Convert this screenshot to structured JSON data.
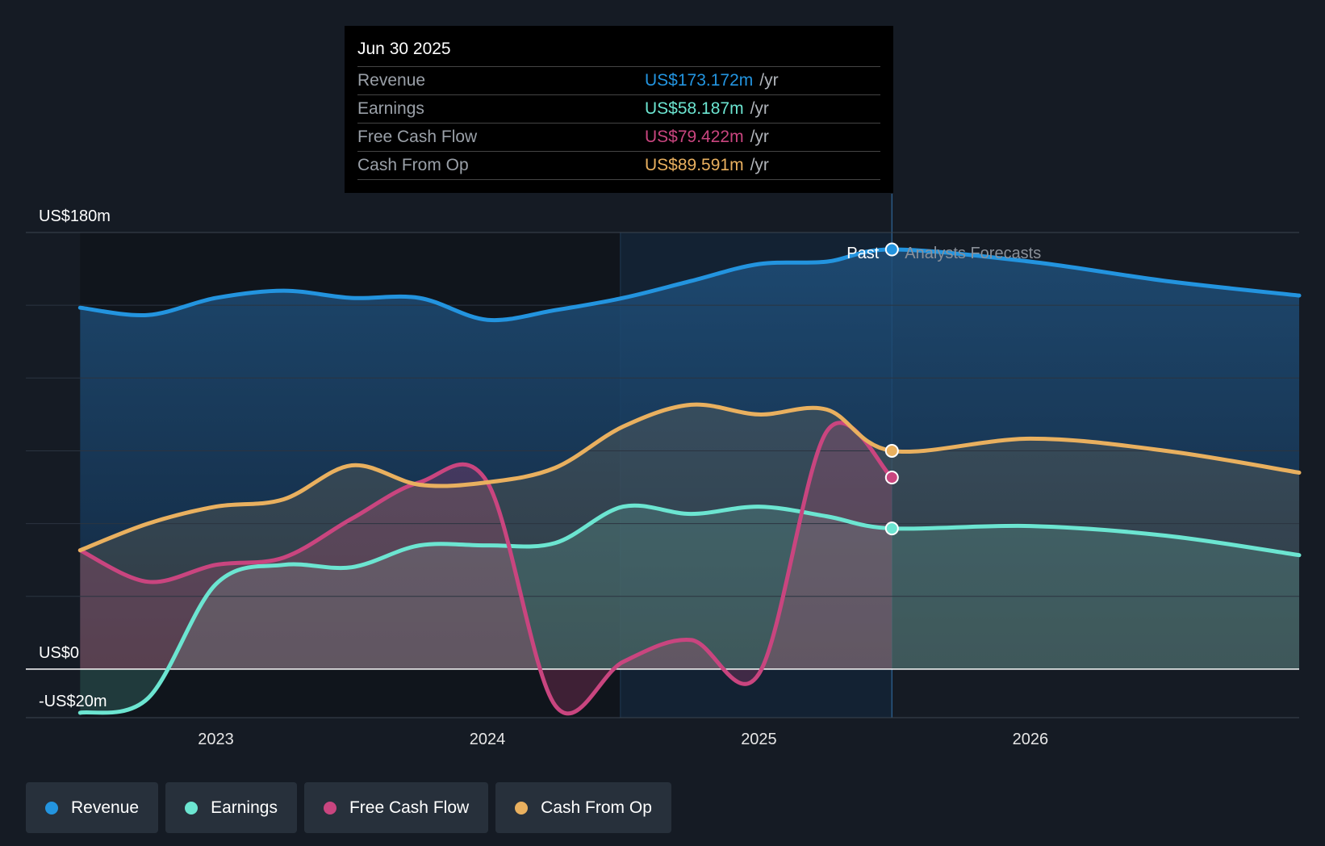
{
  "tooltip": {
    "date": "Jun 30 2025",
    "rows": [
      {
        "name": "Revenue",
        "value": "US$173.172m",
        "unit": "/yr",
        "color": "#2394df"
      },
      {
        "name": "Earnings",
        "value": "US$58.187m",
        "unit": "/yr",
        "color": "#6ce5d1"
      },
      {
        "name": "Free Cash Flow",
        "value": "US$79.422m",
        "unit": "/yr",
        "color": "#c9457f"
      },
      {
        "name": "Cash From Op",
        "value": "US$89.591m",
        "unit": "/yr",
        "color": "#e9b05f"
      }
    ]
  },
  "labels": {
    "past": "Past",
    "forecast": "Analysts Forecasts"
  },
  "legend": [
    {
      "name": "Revenue",
      "color": "#2394df"
    },
    {
      "name": "Earnings",
      "color": "#6ce5d1"
    },
    {
      "name": "Free Cash Flow",
      "color": "#c9457f"
    },
    {
      "name": "Cash From Op",
      "color": "#e9b05f"
    }
  ],
  "chart_data": {
    "type": "line",
    "y_tick_labels": [
      "US$180m",
      "US$0",
      "-US$20m"
    ],
    "ylim": [
      -20,
      180
    ],
    "x_tick_labels": [
      "2023",
      "2024",
      "2025",
      "2026"
    ],
    "x_ticks": [
      2023.0,
      2024.0,
      2025.0,
      2026.0
    ],
    "xlim": [
      2022.3,
      2026.99
    ],
    "past_end": 2025.49,
    "highlight_start": 2024.49,
    "grid": true,
    "series": [
      {
        "name": "Revenue",
        "color": "#2394df",
        "x": [
          2022.5,
          2022.75,
          2023.0,
          2023.25,
          2023.5,
          2023.75,
          2024.0,
          2024.25,
          2024.5,
          2024.75,
          2025.0,
          2025.25,
          2025.49,
          2026.0,
          2026.5,
          2026.99
        ],
        "y": [
          149,
          146,
          153,
          156,
          153,
          153,
          144,
          148,
          153,
          160,
          167,
          168,
          173,
          168,
          160,
          154
        ]
      },
      {
        "name": "Earnings",
        "color": "#6ce5d1",
        "x": [
          2022.5,
          2022.75,
          2023.0,
          2023.25,
          2023.5,
          2023.75,
          2024.0,
          2024.25,
          2024.5,
          2024.75,
          2025.0,
          2025.25,
          2025.49,
          2026.0,
          2026.5,
          2026.99
        ],
        "y": [
          -18,
          -12,
          35,
          43,
          42,
          51,
          51,
          52,
          67,
          64,
          67,
          63,
          58,
          59,
          55,
          47
        ]
      },
      {
        "name": "Free Cash Flow",
        "color": "#c9457f",
        "x": [
          2022.5,
          2022.75,
          2023.0,
          2023.25,
          2023.5,
          2023.75,
          2024.0,
          2024.25,
          2024.5,
          2024.75,
          2025.0,
          2025.25,
          2025.49
        ],
        "y": [
          49,
          36,
          43,
          46,
          62,
          77,
          77,
          -15,
          3,
          12,
          -2,
          98,
          79
        ]
      },
      {
        "name": "Cash From Op",
        "color": "#e9b05f",
        "x": [
          2022.5,
          2022.75,
          2023.0,
          2023.25,
          2023.5,
          2023.75,
          2024.0,
          2024.25,
          2024.5,
          2024.75,
          2025.0,
          2025.25,
          2025.49,
          2026.0,
          2026.5,
          2026.99
        ],
        "y": [
          49,
          60,
          67,
          70,
          84,
          76,
          77,
          83,
          100,
          109,
          105,
          107,
          90,
          95,
          90,
          81
        ]
      }
    ]
  }
}
